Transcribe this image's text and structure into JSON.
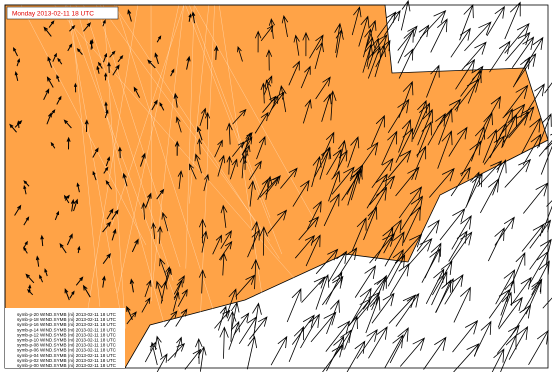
{
  "title": "Monday 2013-02-11 18 UTC",
  "legend": {
    "items": [
      "symb-p-20 WIND.SYMB (ni) 2013-02-11 18 UTC",
      "symb-p-18 WIND.SYMB (ni) 2013-02-11 18 UTC",
      "symb-p-16 WIND.SYMB (ni) 2013-02-11 18 UTC",
      "symb-p-14 WIND.SYMB (ni) 2013-02-11 18 UTC",
      "symb-p-12 WIND.SYMB (ni) 2013-02-11 18 UTC",
      "symb-p-10 WIND.SYMB (ni) 2013-02-11 18 UTC",
      "symb-p-08 WIND.SYMB (ni) 2013-02-11 18 UTC",
      "symb-p-06 WIND.SYMB (ni) 2013-02-11 18 UTC",
      "symb-p-04 WIND.SYMB (ni) 2013-02-11 18 UTC",
      "symb-p-02 WIND.SYMB (ni) 2013-02-11 18 UTC",
      "symb-p-00 WIND.SYMB (ni) 2013-02-11 18 UTC"
    ]
  }
}
